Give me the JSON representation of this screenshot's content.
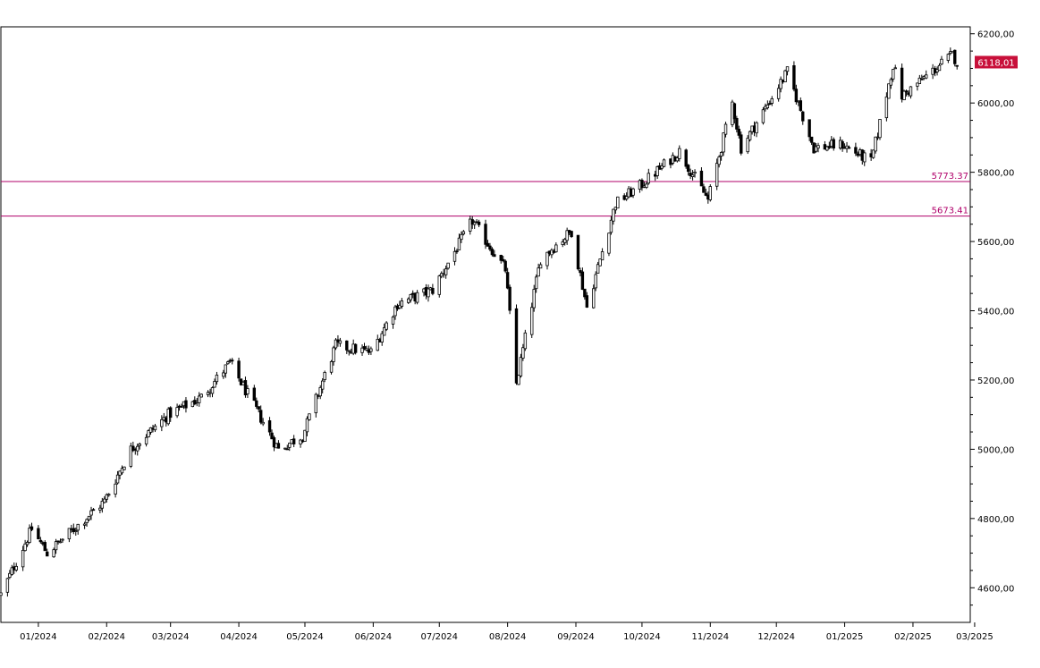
{
  "chart_data": {
    "type": "candlestick",
    "title": "",
    "xlabel": "",
    "ylabel": "",
    "ylim": [
      4500,
      6220
    ],
    "x_range": [
      "2023-12-15",
      "2025-02-27"
    ],
    "y_ticks": [
      4600,
      4800,
      5000,
      5200,
      5400,
      5600,
      5800,
      6000,
      6200
    ],
    "y_tick_labels": [
      "4600,00",
      "4800,00",
      "5000,00",
      "5200,00",
      "5400,00",
      "5600,00",
      "5800,00",
      "6000,00",
      "6200,00"
    ],
    "x_ticks": [
      "2024-01-01",
      "2024-02-01",
      "2024-03-01",
      "2024-04-01",
      "2024-05-01",
      "2024-06-01",
      "2024-07-01",
      "2024-08-01",
      "2024-09-01",
      "2024-10-01",
      "2024-11-01",
      "2024-12-01",
      "2025-01-01",
      "2025-02-01",
      "2025-03-01"
    ],
    "x_tick_labels": [
      "01/2024",
      "02/2024",
      "03/2024",
      "04/2024",
      "05/2024",
      "06/2024",
      "07/2024",
      "08/2024",
      "09/2024",
      "10/2024",
      "11/2024",
      "12/2024",
      "01/2025",
      "02/2025",
      "03/2025"
    ],
    "horizontal_lines": [
      {
        "value": 5773.37,
        "label": "5773.37",
        "color": "#b0006a"
      },
      {
        "value": 5673.41,
        "label": "5673.41",
        "color": "#b0006a"
      }
    ],
    "last_price": {
      "value": 6118.01,
      "label": "6118,01",
      "color": "#c8103a"
    },
    "grid": false,
    "up_color": "#ffffff",
    "down_color": "#000000",
    "monthly_anchors": [
      [
        "2023-12-15",
        4580
      ],
      [
        "2023-12-29",
        4770
      ],
      [
        "2024-01-05",
        4700
      ],
      [
        "2024-01-31",
        4850
      ],
      [
        "2024-02-12",
        5000
      ],
      [
        "2024-02-29",
        5100
      ],
      [
        "2024-03-15",
        5150
      ],
      [
        "2024-03-28",
        5250
      ],
      [
        "2024-04-19",
        5000
      ],
      [
        "2024-04-30",
        5040
      ],
      [
        "2024-05-15",
        5300
      ],
      [
        "2024-05-31",
        5280
      ],
      [
        "2024-06-12",
        5420
      ],
      [
        "2024-06-28",
        5460
      ],
      [
        "2024-07-16",
        5660
      ],
      [
        "2024-07-31",
        5520
      ],
      [
        "2024-08-05",
        5190
      ],
      [
        "2024-08-16",
        5550
      ],
      [
        "2024-08-30",
        5630
      ],
      [
        "2024-09-06",
        5410
      ],
      [
        "2024-09-19",
        5710
      ],
      [
        "2024-09-30",
        5760
      ],
      [
        "2024-10-18",
        5860
      ],
      [
        "2024-10-31",
        5720
      ],
      [
        "2024-11-11",
        6000
      ],
      [
        "2024-11-15",
        5870
      ],
      [
        "2024-12-06",
        6090
      ],
      [
        "2024-12-18",
        5870
      ],
      [
        "2024-12-31",
        5880
      ],
      [
        "2025-01-13",
        5830
      ],
      [
        "2025-01-23",
        6110
      ],
      [
        "2025-01-27",
        6020
      ],
      [
        "2025-02-19",
        6140
      ],
      [
        "2025-02-21",
        6118
      ]
    ]
  }
}
